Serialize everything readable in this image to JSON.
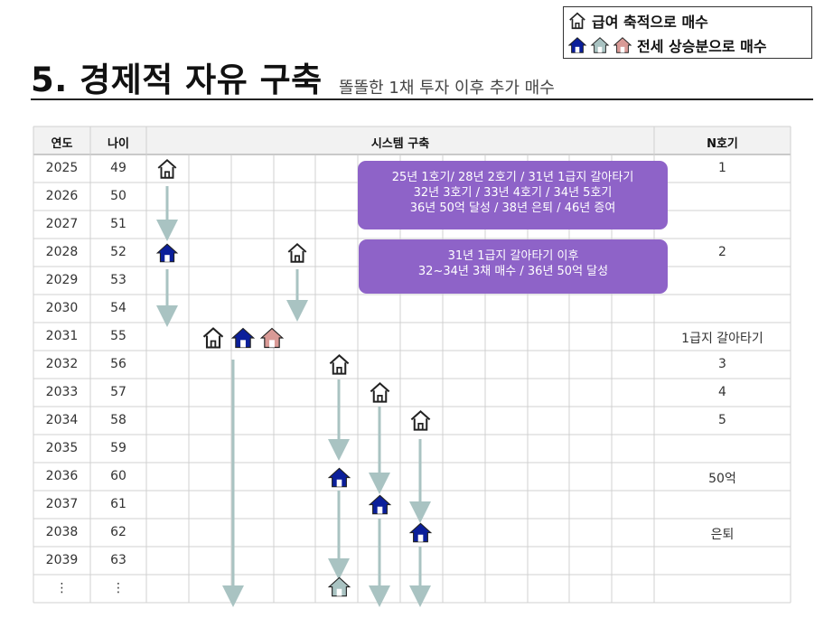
{
  "legend": {
    "row1": "급여 축적으로 매수",
    "row2": "전세 상승분으로 매수"
  },
  "title": "5. 경제적 자유 구축",
  "subtitle": "똘똘한 1채 투자 이후 추가 매수",
  "table": {
    "headers": {
      "year": "연도",
      "age": "나이",
      "system": "시스템 구축",
      "n": "N호기"
    },
    "rows": [
      {
        "year": "2025",
        "age": "49",
        "n": "1"
      },
      {
        "year": "2026",
        "age": "50",
        "n": ""
      },
      {
        "year": "2027",
        "age": "51",
        "n": ""
      },
      {
        "year": "2028",
        "age": "52",
        "n": "2"
      },
      {
        "year": "2029",
        "age": "53",
        "n": ""
      },
      {
        "year": "2030",
        "age": "54",
        "n": ""
      },
      {
        "year": "2031",
        "age": "55",
        "n": "1급지 갈아타기"
      },
      {
        "year": "2032",
        "age": "56",
        "n": "3"
      },
      {
        "year": "2033",
        "age": "57",
        "n": "4"
      },
      {
        "year": "2034",
        "age": "58",
        "n": "5"
      },
      {
        "year": "2035",
        "age": "59",
        "n": ""
      },
      {
        "year": "2036",
        "age": "60",
        "n": "50억"
      },
      {
        "year": "2037",
        "age": "61",
        "n": ""
      },
      {
        "year": "2038",
        "age": "62",
        "n": "은퇴"
      },
      {
        "year": "2039",
        "age": "63",
        "n": ""
      },
      {
        "year": "⋮",
        "age": "⋮",
        "n": ""
      }
    ]
  },
  "callouts": {
    "c1": {
      "line1": "25년 1호기/ 28년 2호기 / 31년 1급지 갈아타기",
      "line2": "32년 3호기 / 33년 4호기 / 34년 5호기",
      "line3": "36년 50억 달성 / 38년 은퇴 / 46년 증여"
    },
    "c2": {
      "line1": "31년 1급지 갈아타기 이후",
      "line2": "32~34년 3채 매수 / 36년 50억 달성"
    }
  },
  "colors": {
    "outline_house": "#ffffff",
    "navy_house": "#0b1f9a",
    "teal_house": "#a9c3c2",
    "pink_house": "#d99a96",
    "callout": "#8e63c8",
    "arrow": "#a9c3c2"
  }
}
